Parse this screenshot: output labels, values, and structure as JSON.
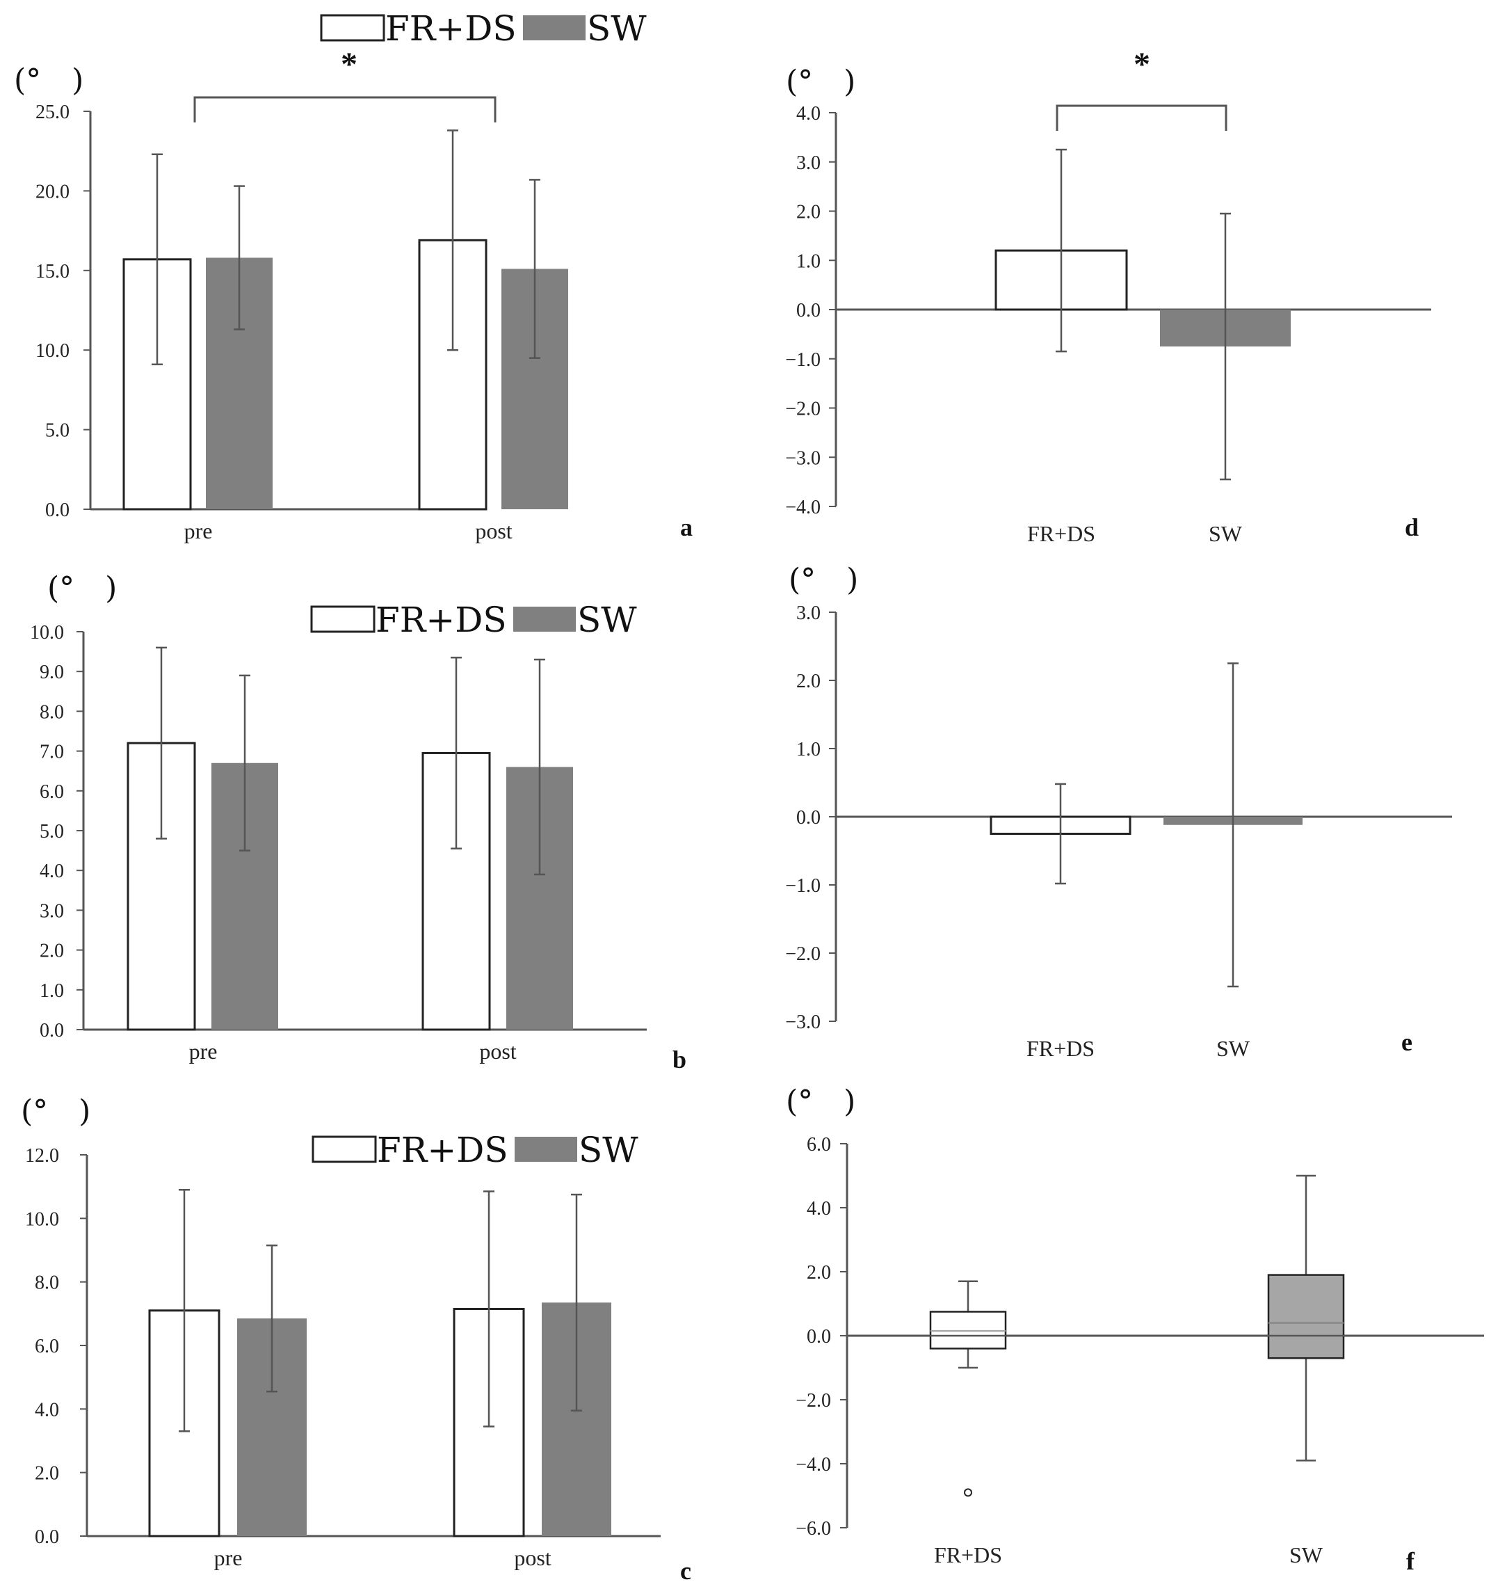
{
  "colors": {
    "series_a": "#ffffff",
    "series_b": "#808080",
    "box_b": "#a6a6a6",
    "axis": "#555555",
    "stroke": "#222222"
  },
  "chart_data": [
    {
      "id": "a",
      "type": "bar",
      "panel_label": "a",
      "unit": "(°　)",
      "categories": [
        "pre",
        "post"
      ],
      "series": [
        {
          "name": "FR+DS",
          "values": [
            15.7,
            16.9
          ],
          "errors": [
            6.6,
            6.9
          ]
        },
        {
          "name": "SW",
          "values": [
            15.8,
            15.1
          ],
          "errors": [
            4.5,
            5.6
          ]
        }
      ],
      "ylim": [
        0,
        25
      ],
      "yticks": [
        "0.0",
        "5.0",
        "10.0",
        "15.0",
        "20.0",
        "25.0"
      ],
      "legend": [
        "FR+DS",
        "SW"
      ],
      "significance": {
        "label": "*"
      }
    },
    {
      "id": "b",
      "type": "bar",
      "panel_label": "b",
      "unit": "(°　)",
      "categories": [
        "pre",
        "post"
      ],
      "series": [
        {
          "name": "FR+DS",
          "values": [
            7.2,
            6.95
          ],
          "errors": [
            2.4,
            2.4
          ]
        },
        {
          "name": "SW",
          "values": [
            6.7,
            6.6
          ],
          "errors": [
            2.2,
            2.7
          ]
        }
      ],
      "ylim": [
        0,
        10
      ],
      "yticks": [
        "0.0",
        "1.0",
        "2.0",
        "3.0",
        "4.0",
        "5.0",
        "6.0",
        "7.0",
        "8.0",
        "9.0",
        "10.0"
      ],
      "legend": [
        "FR+DS",
        "SW"
      ]
    },
    {
      "id": "c",
      "type": "bar",
      "panel_label": "c",
      "unit": "(°　)",
      "categories": [
        "pre",
        "post"
      ],
      "series": [
        {
          "name": "FR+DS",
          "values": [
            7.1,
            7.15
          ],
          "errors": [
            3.8,
            3.7
          ]
        },
        {
          "name": "SW",
          "values": [
            6.85,
            7.35
          ],
          "errors": [
            2.3,
            3.4
          ]
        }
      ],
      "ylim": [
        0,
        12
      ],
      "yticks": [
        "0.0",
        "2.0",
        "4.0",
        "6.0",
        "8.0",
        "10.0",
        "12.0"
      ],
      "legend": [
        "FR+DS",
        "SW"
      ]
    },
    {
      "id": "d",
      "type": "bar",
      "panel_label": "d",
      "unit": "(°　)",
      "categories": [
        "FR+DS",
        "SW"
      ],
      "values": [
        1.2,
        -0.75
      ],
      "errors": [
        2.05,
        2.7
      ],
      "ylim": [
        -4,
        4
      ],
      "yticks": [
        "−4.0",
        "−3.0",
        "−2.0",
        "−1.0",
        "0.0",
        "1.0",
        "2.0",
        "3.0",
        "4.0"
      ],
      "significance": {
        "label": "*"
      }
    },
    {
      "id": "e",
      "type": "bar",
      "panel_label": "e",
      "unit": "(°　)",
      "categories": [
        "FR+DS",
        "SW"
      ],
      "values": [
        -0.25,
        -0.12
      ],
      "errors": [
        0.73,
        2.37
      ],
      "ylim": [
        -3,
        3
      ],
      "yticks": [
        "−3.0",
        "−2.0",
        "−1.0",
        "0.0",
        "1.0",
        "2.0",
        "3.0"
      ]
    },
    {
      "id": "f",
      "type": "box",
      "panel_label": "f",
      "unit": "(°　)",
      "categories": [
        "FR+DS",
        "SW"
      ],
      "boxes": [
        {
          "name": "FR+DS",
          "min": -1.0,
          "q1": -0.4,
          "median": 0.15,
          "q3": 0.75,
          "max": 1.7,
          "outliers": [
            -4.9
          ]
        },
        {
          "name": "SW",
          "min": -3.9,
          "q1": -0.7,
          "median": 0.4,
          "q3": 1.9,
          "max": 5.0,
          "outliers": []
        }
      ],
      "ylim": [
        -6,
        6
      ],
      "yticks": [
        "−6.0",
        "−4.0",
        "−2.0",
        "0.0",
        "2.0",
        "4.0",
        "6.0"
      ]
    }
  ]
}
